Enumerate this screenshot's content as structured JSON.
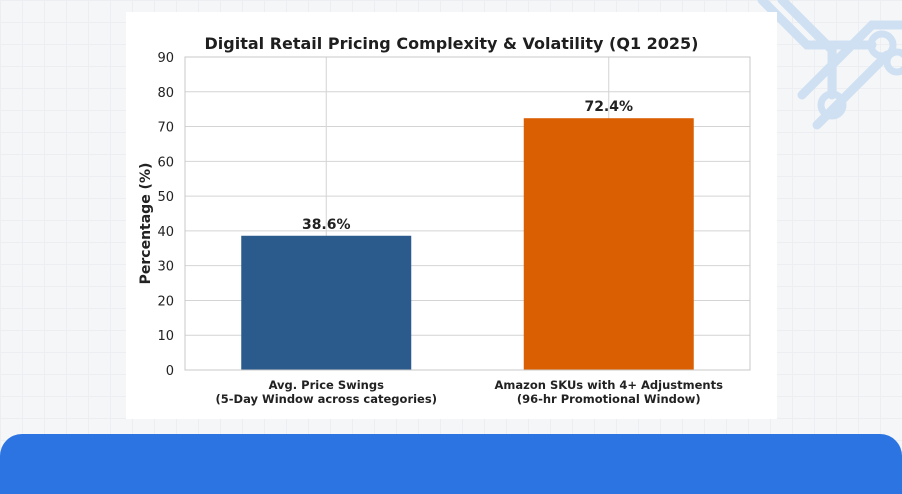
{
  "colors": {
    "bar_1": "#2b5b8c",
    "bar_2": "#d95f02",
    "bottom_band": "#2b74e2",
    "decoration": "#cfe0f3"
  },
  "chart_data": {
    "type": "bar",
    "title": "Digital Retail Pricing Complexity & Volatility (Q1 2025)",
    "xlabel": "",
    "ylabel": "Percentage (%)",
    "ylim": [
      0,
      90
    ],
    "yticks": [
      0,
      10,
      20,
      30,
      40,
      50,
      60,
      70,
      80,
      90
    ],
    "grid": true,
    "categories": [
      [
        "Avg. Price Swings",
        "(5-Day Window across categories)"
      ],
      [
        "Amazon SKUs with 4+ Adjustments",
        "(96-hr Promotional Window)"
      ]
    ],
    "values": [
      38.6,
      72.4
    ],
    "data_labels": [
      "38.6%",
      "72.4%"
    ]
  }
}
